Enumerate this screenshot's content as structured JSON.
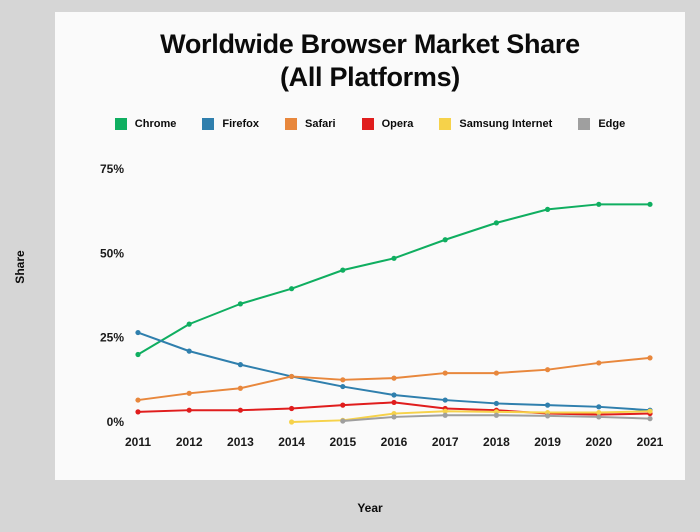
{
  "header": {
    "title_line1": "Worldwide Browser Market Share",
    "title_line2": "(All Platforms)"
  },
  "chart_data": {
    "type": "line",
    "title": "Worldwide Browser Market Share (All Platforms)",
    "xlabel": "Year",
    "ylabel": "Share",
    "x": [
      "2011",
      "2012",
      "2013",
      "2014",
      "2015",
      "2016",
      "2017",
      "2018",
      "2019",
      "2020",
      "2021"
    ],
    "yticks": [
      0,
      25,
      50,
      75
    ],
    "ytick_suffix": "%",
    "ylim": [
      0,
      80
    ],
    "grid": false,
    "legend_position": "top",
    "series": [
      {
        "name": "Chrome",
        "color": "#0fae60",
        "values": [
          20,
          29,
          35,
          39.5,
          45,
          48.5,
          54,
          59,
          63,
          64.5,
          64.5
        ]
      },
      {
        "name": "Firefox",
        "color": "#2f7fad",
        "values": [
          26.5,
          21,
          17,
          13.5,
          10.5,
          8,
          6.5,
          5.5,
          5,
          4.5,
          3.5
        ]
      },
      {
        "name": "Safari",
        "color": "#e8873c",
        "values": [
          6.5,
          8.5,
          10,
          13.5,
          12.5,
          13,
          14.5,
          14.5,
          15.5,
          17.5,
          19
        ]
      },
      {
        "name": "Opera",
        "color": "#e01d1d",
        "values": [
          3,
          3.5,
          3.5,
          4,
          5,
          5.8,
          4,
          3.5,
          2.5,
          2.2,
          2.5
        ]
      },
      {
        "name": "Samsung Internet",
        "color": "#f6d24a",
        "values": [
          null,
          null,
          null,
          0,
          0.5,
          2.5,
          3.2,
          3,
          2.8,
          2.8,
          3.2
        ]
      },
      {
        "name": "Edge",
        "color": "#9f9f9f",
        "values": [
          null,
          null,
          null,
          null,
          0.3,
          1.5,
          2,
          2,
          1.8,
          1.5,
          1
        ]
      }
    ]
  }
}
